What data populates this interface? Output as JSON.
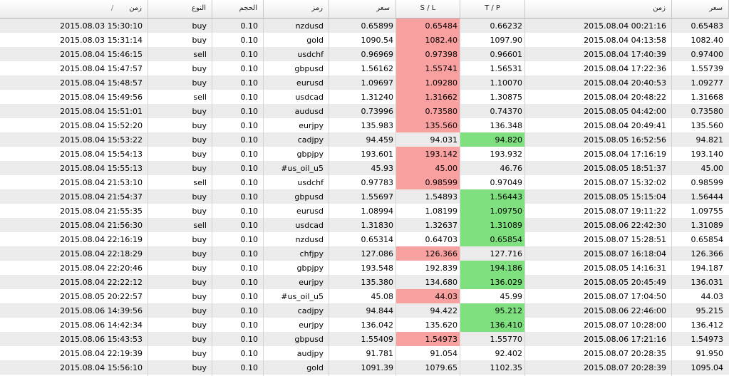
{
  "headers": {
    "open_time": "زمن",
    "sort_mark": "/",
    "type": "النوع",
    "volume": "الحجم",
    "symbol": "رمز",
    "open_price": "سعر",
    "sl": "S / L",
    "tp": "T / P",
    "close_time": "زمن",
    "close_price": "سعر"
  },
  "colors": {
    "sl_hit": "#f9a0a0",
    "tp_hit": "#7fe07f",
    "row_alt": "#ebebeb"
  },
  "rows": [
    {
      "open_time": "2015.08.03 15:30:10",
      "type": "buy",
      "volume": "0.10",
      "symbol": "nzdusd",
      "open_price": "0.65899",
      "sl": "0.65484",
      "tp": "0.66232",
      "close_time": "2015.08.04 00:21:16",
      "close_price": "0.65483",
      "hit": "sl"
    },
    {
      "open_time": "2015.08.03 15:31:14",
      "type": "buy",
      "volume": "0.10",
      "symbol": "gold",
      "open_price": "1090.54",
      "sl": "1082.40",
      "tp": "1097.90",
      "close_time": "2015.08.04 04:13:58",
      "close_price": "1082.40",
      "hit": "sl"
    },
    {
      "open_time": "2015.08.04 15:46:15",
      "type": "sell",
      "volume": "0.10",
      "symbol": "usdchf",
      "open_price": "0.96969",
      "sl": "0.97398",
      "tp": "0.96601",
      "close_time": "2015.08.04 17:40:39",
      "close_price": "0.97400",
      "hit": "sl"
    },
    {
      "open_time": "2015.08.04 15:47:57",
      "type": "buy",
      "volume": "0.10",
      "symbol": "gbpusd",
      "open_price": "1.56162",
      "sl": "1.55741",
      "tp": "1.56531",
      "close_time": "2015.08.04 17:22:36",
      "close_price": "1.55739",
      "hit": "sl"
    },
    {
      "open_time": "2015.08.04 15:48:57",
      "type": "buy",
      "volume": "0.10",
      "symbol": "eurusd",
      "open_price": "1.09697",
      "sl": "1.09280",
      "tp": "1.10070",
      "close_time": "2015.08.04 20:40:53",
      "close_price": "1.09277",
      "hit": "sl"
    },
    {
      "open_time": "2015.08.04 15:49:56",
      "type": "sell",
      "volume": "0.10",
      "symbol": "usdcad",
      "open_price": "1.31240",
      "sl": "1.31662",
      "tp": "1.30875",
      "close_time": "2015.08.04 20:48:22",
      "close_price": "1.31668",
      "hit": "sl"
    },
    {
      "open_time": "2015.08.04 15:51:01",
      "type": "buy",
      "volume": "0.10",
      "symbol": "audusd",
      "open_price": "0.73996",
      "sl": "0.73580",
      "tp": "0.74370",
      "close_time": "2015.08.05 04:42:00",
      "close_price": "0.73580",
      "hit": "sl"
    },
    {
      "open_time": "2015.08.04 15:52:20",
      "type": "buy",
      "volume": "0.10",
      "symbol": "eurjpy",
      "open_price": "135.983",
      "sl": "135.560",
      "tp": "136.348",
      "close_time": "2015.08.04 20:49:41",
      "close_price": "135.560",
      "hit": "sl"
    },
    {
      "open_time": "2015.08.04 15:53:22",
      "type": "buy",
      "volume": "0.10",
      "symbol": "cadjpy",
      "open_price": "94.459",
      "sl": "94.031",
      "tp": "94.820",
      "close_time": "2015.08.05 16:52:56",
      "close_price": "94.821",
      "hit": "tp"
    },
    {
      "open_time": "2015.08.04 15:54:13",
      "type": "buy",
      "volume": "0.10",
      "symbol": "gbpjpy",
      "open_price": "193.601",
      "sl": "193.142",
      "tp": "193.932",
      "close_time": "2015.08.04 17:16:19",
      "close_price": "193.140",
      "hit": "sl"
    },
    {
      "open_time": "2015.08.04 15:55:13",
      "type": "buy",
      "volume": "0.10",
      "symbol": "#us_oil_u5",
      "open_price": "45.93",
      "sl": "45.00",
      "tp": "46.76",
      "close_time": "2015.08.05 18:51:37",
      "close_price": "45.00",
      "hit": "sl"
    },
    {
      "open_time": "2015.08.04 21:53:10",
      "type": "sell",
      "volume": "0.10",
      "symbol": "usdchf",
      "open_price": "0.97783",
      "sl": "0.98599",
      "tp": "0.97049",
      "close_time": "2015.08.07 15:32:02",
      "close_price": "0.98599",
      "hit": "sl"
    },
    {
      "open_time": "2015.08.04 21:54:37",
      "type": "buy",
      "volume": "0.10",
      "symbol": "gbpusd",
      "open_price": "1.55697",
      "sl": "1.54893",
      "tp": "1.56443",
      "close_time": "2015.08.05 15:15:04",
      "close_price": "1.56444",
      "hit": "tp"
    },
    {
      "open_time": "2015.08.04 21:55:35",
      "type": "buy",
      "volume": "0.10",
      "symbol": "eurusd",
      "open_price": "1.08994",
      "sl": "1.08199",
      "tp": "1.09750",
      "close_time": "2015.08.07 19:11:22",
      "close_price": "1.09755",
      "hit": "tp"
    },
    {
      "open_time": "2015.08.04 21:56:30",
      "type": "sell",
      "volume": "0.10",
      "symbol": "usdcad",
      "open_price": "1.31830",
      "sl": "1.32637",
      "tp": "1.31089",
      "close_time": "2015.08.06 22:42:30",
      "close_price": "1.31089",
      "hit": "tp"
    },
    {
      "open_time": "2015.08.04 22:16:19",
      "type": "buy",
      "volume": "0.10",
      "symbol": "nzdusd",
      "open_price": "0.65314",
      "sl": "0.64703",
      "tp": "0.65854",
      "close_time": "2015.08.07 15:28:51",
      "close_price": "0.65854",
      "hit": "tp"
    },
    {
      "open_time": "2015.08.04 22:18:29",
      "type": "buy",
      "volume": "0.10",
      "symbol": "chfjpy",
      "open_price": "127.086",
      "sl": "126.366",
      "tp": "127.716",
      "close_time": "2015.08.07 16:18:04",
      "close_price": "126.366",
      "hit": "sl"
    },
    {
      "open_time": "2015.08.04 22:20:46",
      "type": "buy",
      "volume": "0.10",
      "symbol": "gbpjpy",
      "open_price": "193.548",
      "sl": "192.839",
      "tp": "194.186",
      "close_time": "2015.08.05 14:16:31",
      "close_price": "194.187",
      "hit": "tp"
    },
    {
      "open_time": "2015.08.04 22:22:12",
      "type": "buy",
      "volume": "0.10",
      "symbol": "eurjpy",
      "open_price": "135.380",
      "sl": "134.680",
      "tp": "136.029",
      "close_time": "2015.08.05 20:45:49",
      "close_price": "136.031",
      "hit": "tp"
    },
    {
      "open_time": "2015.08.05 20:22:57",
      "type": "buy",
      "volume": "0.10",
      "symbol": "#us_oil_u5",
      "open_price": "45.08",
      "sl": "44.03",
      "tp": "45.99",
      "close_time": "2015.08.07 17:04:50",
      "close_price": "44.03",
      "hit": "sl"
    },
    {
      "open_time": "2015.08.06 14:39:56",
      "type": "buy",
      "volume": "0.10",
      "symbol": "cadjpy",
      "open_price": "94.844",
      "sl": "94.422",
      "tp": "95.212",
      "close_time": "2015.08.06 22:46:00",
      "close_price": "95.215",
      "hit": "tp"
    },
    {
      "open_time": "2015.08.06 14:42:34",
      "type": "buy",
      "volume": "0.10",
      "symbol": "eurjpy",
      "open_price": "136.042",
      "sl": "135.620",
      "tp": "136.410",
      "close_time": "2015.08.07 10:28:00",
      "close_price": "136.412",
      "hit": "tp"
    },
    {
      "open_time": "2015.08.06 15:43:53",
      "type": "buy",
      "volume": "0.10",
      "symbol": "gbpusd",
      "open_price": "1.55409",
      "sl": "1.54973",
      "tp": "1.55770",
      "close_time": "2015.08.06 17:21:16",
      "close_price": "1.54973",
      "hit": "sl"
    },
    {
      "open_time": "2015.08.04 22:19:39",
      "type": "buy",
      "volume": "0.10",
      "symbol": "audjpy",
      "open_price": "91.781",
      "sl": "91.054",
      "tp": "92.402",
      "close_time": "2015.08.07 20:28:35",
      "close_price": "91.950",
      "hit": ""
    },
    {
      "open_time": "2015.08.04 15:56:10",
      "type": "buy",
      "volume": "0.10",
      "symbol": "gold",
      "open_price": "1091.39",
      "sl": "1079.65",
      "tp": "1102.35",
      "close_time": "2015.08.07 20:28:39",
      "close_price": "1095.04",
      "hit": ""
    }
  ]
}
